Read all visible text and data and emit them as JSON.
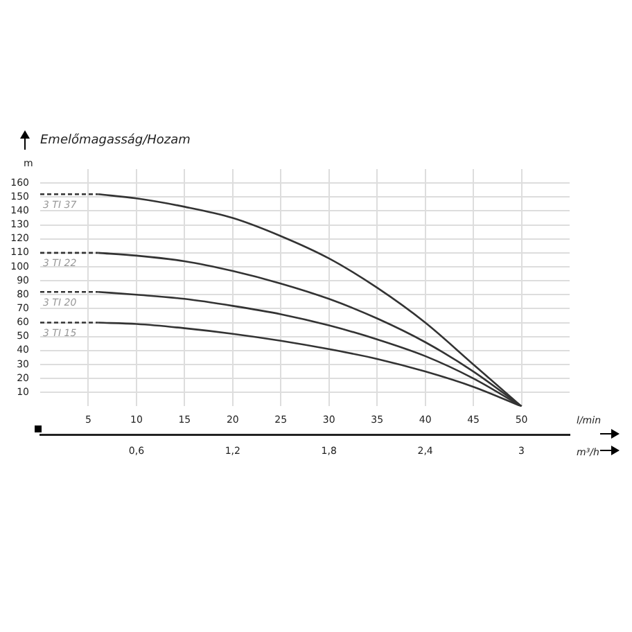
{
  "chart_data": {
    "type": "line",
    "title": "Emelőmagasság/Hozam",
    "ylabel": "m",
    "xlabel": "l/min",
    "x2label": "m³/h",
    "xlim": [
      0,
      55
    ],
    "xticks": [
      5,
      10,
      15,
      20,
      25,
      30,
      35,
      40,
      45,
      50
    ],
    "x2lim": [
      0,
      3.3
    ],
    "x2ticks": [
      {
        "value": 0.6,
        "label": "0,6"
      },
      {
        "value": 1.2,
        "label": "1,2"
      },
      {
        "value": 1.8,
        "label": "1,8"
      },
      {
        "value": 2.4,
        "label": "2,4"
      },
      3
    ],
    "ylim": [
      0,
      170
    ],
    "yticks": [
      10,
      20,
      30,
      40,
      50,
      60,
      70,
      80,
      90,
      100,
      110,
      120,
      130,
      140,
      150,
      160
    ],
    "grid": true,
    "legend": false,
    "marker": "none",
    "series": [
      {
        "name": "3 TI 37",
        "color": "#333333",
        "x": [
          6,
          10,
          15,
          20,
          25,
          30,
          35,
          40,
          45,
          50
        ],
        "values": [
          152,
          149,
          143,
          135,
          122,
          106,
          85,
          60,
          30,
          0
        ]
      },
      {
        "name": "3 TI 22",
        "color": "#333333",
        "x": [
          6,
          10,
          15,
          20,
          25,
          30,
          35,
          40,
          45,
          50
        ],
        "values": [
          110,
          108,
          104,
          97,
          88,
          77,
          63,
          46,
          25,
          0
        ]
      },
      {
        "name": "3 TI 20",
        "color": "#333333",
        "x": [
          6,
          10,
          15,
          20,
          25,
          30,
          35,
          40,
          45,
          50
        ],
        "values": [
          82,
          80,
          77,
          72,
          66,
          58,
          48,
          36,
          20,
          0
        ]
      },
      {
        "name": "3 TI 15",
        "color": "#333333",
        "x": [
          6,
          10,
          15,
          20,
          25,
          30,
          35,
          40,
          45,
          50
        ],
        "values": [
          60,
          59,
          56,
          52,
          47,
          41,
          34,
          25,
          14,
          0
        ]
      },
      {
        "color": "#333333",
        "line_style": "dashed",
        "x": [
          0,
          6
        ],
        "values": [
          152,
          152
        ]
      },
      {
        "color": "#333333",
        "line_style": "dashed",
        "x": [
          0,
          6
        ],
        "values": [
          110,
          110
        ]
      },
      {
        "color": "#333333",
        "line_style": "dashed",
        "x": [
          0,
          6
        ],
        "values": [
          82,
          82
        ]
      },
      {
        "color": "#333333",
        "line_style": "dashed",
        "x": [
          0,
          6
        ],
        "values": [
          60,
          60
        ]
      }
    ]
  }
}
